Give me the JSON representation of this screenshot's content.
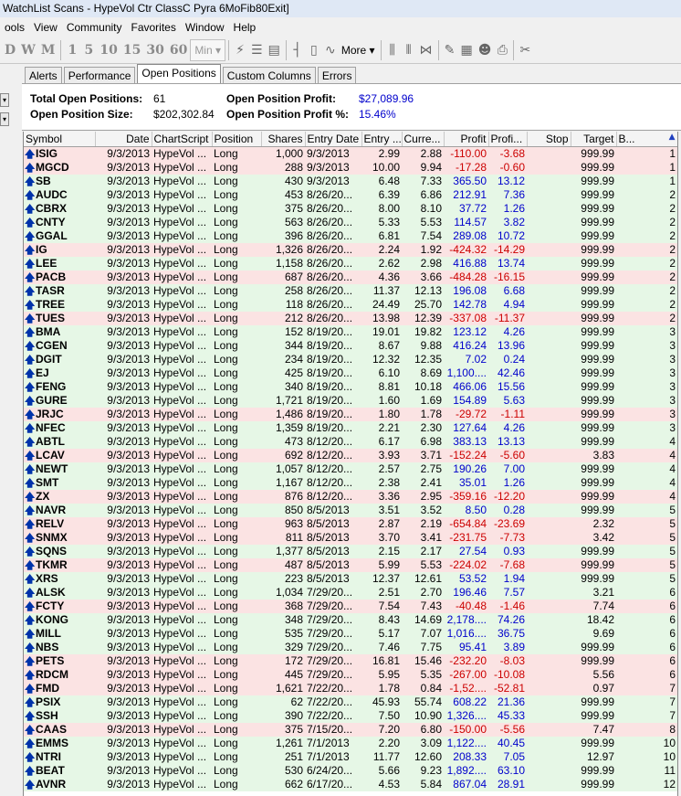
{
  "window": {
    "title": "WatchList Scans - HypeVol Ctr ClassC Pyra 6MoFib80Exit]"
  },
  "menu": [
    "ools",
    "View",
    "Community",
    "Favorites",
    "Window",
    "Help"
  ],
  "toolbar": {
    "buttons": [
      "D",
      "W",
      "M",
      "1",
      "5",
      "10",
      "15",
      "30",
      "60"
    ],
    "min_label": "Min",
    "more_label": "More"
  },
  "tabs": [
    "Alerts",
    "Performance",
    "Open Positions",
    "Custom Columns",
    "Errors"
  ],
  "summary": {
    "total_open_positions_label": "Total Open Positions:",
    "total_open_positions": "61",
    "open_position_size_label": "Open Position Size:",
    "open_position_size": "$202,302.84",
    "open_position_profit_label": "Open Position Profit:",
    "open_position_profit": "$27,089.96",
    "open_position_profit_pct_label": "Open Position Profit %:",
    "open_position_profit_pct": "15.46%"
  },
  "columns": [
    "Symbol",
    "Date",
    "ChartScript",
    "Position",
    "Shares",
    "Entry Date",
    "Entry ...",
    "Curre...",
    "Profit",
    "Profi...",
    "Stop",
    "Target",
    "B..."
  ],
  "rows": [
    [
      "ISIG",
      "9/3/2013",
      "HypeVol ...",
      "Long",
      "1,000",
      "9/3/2013",
      "2.99",
      "2.88",
      "-110.00",
      "-3.68",
      "",
      "999.99",
      "1"
    ],
    [
      "MGCD",
      "9/3/2013",
      "HypeVol ...",
      "Long",
      "288",
      "9/3/2013",
      "10.00",
      "9.94",
      "-17.28",
      "-0.60",
      "",
      "999.99",
      "1"
    ],
    [
      "SB",
      "9/3/2013",
      "HypeVol ...",
      "Long",
      "430",
      "9/3/2013",
      "6.48",
      "7.33",
      "365.50",
      "13.12",
      "",
      "999.99",
      "1"
    ],
    [
      "AUDC",
      "9/3/2013",
      "HypeVol ...",
      "Long",
      "453",
      "8/26/20...",
      "6.39",
      "6.86",
      "212.91",
      "7.36",
      "",
      "999.99",
      "2"
    ],
    [
      "CBRX",
      "9/3/2013",
      "HypeVol ...",
      "Long",
      "375",
      "8/26/20...",
      "8.00",
      "8.10",
      "37.72",
      "1.26",
      "",
      "999.99",
      "2"
    ],
    [
      "CNTY",
      "9/3/2013",
      "HypeVol ...",
      "Long",
      "563",
      "8/26/20...",
      "5.33",
      "5.53",
      "114.57",
      "3.82",
      "",
      "999.99",
      "2"
    ],
    [
      "GGAL",
      "9/3/2013",
      "HypeVol ...",
      "Long",
      "396",
      "8/26/20...",
      "6.81",
      "7.54",
      "289.08",
      "10.72",
      "",
      "999.99",
      "2"
    ],
    [
      "IG",
      "9/3/2013",
      "HypeVol ...",
      "Long",
      "1,326",
      "8/26/20...",
      "2.24",
      "1.92",
      "-424.32",
      "-14.29",
      "",
      "999.99",
      "2"
    ],
    [
      "LEE",
      "9/3/2013",
      "HypeVol ...",
      "Long",
      "1,158",
      "8/26/20...",
      "2.62",
      "2.98",
      "416.88",
      "13.74",
      "",
      "999.99",
      "2"
    ],
    [
      "PACB",
      "9/3/2013",
      "HypeVol ...",
      "Long",
      "687",
      "8/26/20...",
      "4.36",
      "3.66",
      "-484.28",
      "-16.15",
      "",
      "999.99",
      "2"
    ],
    [
      "TASR",
      "9/3/2013",
      "HypeVol ...",
      "Long",
      "258",
      "8/26/20...",
      "11.37",
      "12.13",
      "196.08",
      "6.68",
      "",
      "999.99",
      "2"
    ],
    [
      "TREE",
      "9/3/2013",
      "HypeVol ...",
      "Long",
      "118",
      "8/26/20...",
      "24.49",
      "25.70",
      "142.78",
      "4.94",
      "",
      "999.99",
      "2"
    ],
    [
      "TUES",
      "9/3/2013",
      "HypeVol ...",
      "Long",
      "212",
      "8/26/20...",
      "13.98",
      "12.39",
      "-337.08",
      "-11.37",
      "",
      "999.99",
      "2"
    ],
    [
      "BMA",
      "9/3/2013",
      "HypeVol ...",
      "Long",
      "152",
      "8/19/20...",
      "19.01",
      "19.82",
      "123.12",
      "4.26",
      "",
      "999.99",
      "3"
    ],
    [
      "CGEN",
      "9/3/2013",
      "HypeVol ...",
      "Long",
      "344",
      "8/19/20...",
      "8.67",
      "9.88",
      "416.24",
      "13.96",
      "",
      "999.99",
      "3"
    ],
    [
      "DGIT",
      "9/3/2013",
      "HypeVol ...",
      "Long",
      "234",
      "8/19/20...",
      "12.32",
      "12.35",
      "7.02",
      "0.24",
      "",
      "999.99",
      "3"
    ],
    [
      "EJ",
      "9/3/2013",
      "HypeVol ...",
      "Long",
      "425",
      "8/19/20...",
      "6.10",
      "8.69",
      "1,100....",
      "42.46",
      "",
      "999.99",
      "3"
    ],
    [
      "FENG",
      "9/3/2013",
      "HypeVol ...",
      "Long",
      "340",
      "8/19/20...",
      "8.81",
      "10.18",
      "466.06",
      "15.56",
      "",
      "999.99",
      "3"
    ],
    [
      "GURE",
      "9/3/2013",
      "HypeVol ...",
      "Long",
      "1,721",
      "8/19/20...",
      "1.60",
      "1.69",
      "154.89",
      "5.63",
      "",
      "999.99",
      "3"
    ],
    [
      "JRJC",
      "9/3/2013",
      "HypeVol ...",
      "Long",
      "1,486",
      "8/19/20...",
      "1.80",
      "1.78",
      "-29.72",
      "-1.11",
      "",
      "999.99",
      "3"
    ],
    [
      "NFEC",
      "9/3/2013",
      "HypeVol ...",
      "Long",
      "1,359",
      "8/19/20...",
      "2.21",
      "2.30",
      "127.64",
      "4.26",
      "",
      "999.99",
      "3"
    ],
    [
      "ABTL",
      "9/3/2013",
      "HypeVol ...",
      "Long",
      "473",
      "8/12/20...",
      "6.17",
      "6.98",
      "383.13",
      "13.13",
      "",
      "999.99",
      "4"
    ],
    [
      "LCAV",
      "9/3/2013",
      "HypeVol ...",
      "Long",
      "692",
      "8/12/20...",
      "3.93",
      "3.71",
      "-152.24",
      "-5.60",
      "",
      "3.83",
      "4"
    ],
    [
      "NEWT",
      "9/3/2013",
      "HypeVol ...",
      "Long",
      "1,057",
      "8/12/20...",
      "2.57",
      "2.75",
      "190.26",
      "7.00",
      "",
      "999.99",
      "4"
    ],
    [
      "SMT",
      "9/3/2013",
      "HypeVol ...",
      "Long",
      "1,167",
      "8/12/20...",
      "2.38",
      "2.41",
      "35.01",
      "1.26",
      "",
      "999.99",
      "4"
    ],
    [
      "ZX",
      "9/3/2013",
      "HypeVol ...",
      "Long",
      "876",
      "8/12/20...",
      "3.36",
      "2.95",
      "-359.16",
      "-12.20",
      "",
      "999.99",
      "4"
    ],
    [
      "NAVR",
      "9/3/2013",
      "HypeVol ...",
      "Long",
      "850",
      "8/5/2013",
      "3.51",
      "3.52",
      "8.50",
      "0.28",
      "",
      "999.99",
      "5"
    ],
    [
      "RELV",
      "9/3/2013",
      "HypeVol ...",
      "Long",
      "963",
      "8/5/2013",
      "2.87",
      "2.19",
      "-654.84",
      "-23.69",
      "",
      "2.32",
      "5"
    ],
    [
      "SNMX",
      "9/3/2013",
      "HypeVol ...",
      "Long",
      "811",
      "8/5/2013",
      "3.70",
      "3.41",
      "-231.75",
      "-7.73",
      "",
      "3.42",
      "5"
    ],
    [
      "SQNS",
      "9/3/2013",
      "HypeVol ...",
      "Long",
      "1,377",
      "8/5/2013",
      "2.15",
      "2.17",
      "27.54",
      "0.93",
      "",
      "999.99",
      "5"
    ],
    [
      "TKMR",
      "9/3/2013",
      "HypeVol ...",
      "Long",
      "487",
      "8/5/2013",
      "5.99",
      "5.53",
      "-224.02",
      "-7.68",
      "",
      "999.99",
      "5"
    ],
    [
      "XRS",
      "9/3/2013",
      "HypeVol ...",
      "Long",
      "223",
      "8/5/2013",
      "12.37",
      "12.61",
      "53.52",
      "1.94",
      "",
      "999.99",
      "5"
    ],
    [
      "ALSK",
      "9/3/2013",
      "HypeVol ...",
      "Long",
      "1,034",
      "7/29/20...",
      "2.51",
      "2.70",
      "196.46",
      "7.57",
      "",
      "3.21",
      "6"
    ],
    [
      "FCTY",
      "9/3/2013",
      "HypeVol ...",
      "Long",
      "368",
      "7/29/20...",
      "7.54",
      "7.43",
      "-40.48",
      "-1.46",
      "",
      "7.74",
      "6"
    ],
    [
      "KONG",
      "9/3/2013",
      "HypeVol ...",
      "Long",
      "348",
      "7/29/20...",
      "8.43",
      "14.69",
      "2,178....",
      "74.26",
      "",
      "18.42",
      "6"
    ],
    [
      "MILL",
      "9/3/2013",
      "HypeVol ...",
      "Long",
      "535",
      "7/29/20...",
      "5.17",
      "7.07",
      "1,016....",
      "36.75",
      "",
      "9.69",
      "6"
    ],
    [
      "NBS",
      "9/3/2013",
      "HypeVol ...",
      "Long",
      "329",
      "7/29/20...",
      "7.46",
      "7.75",
      "95.41",
      "3.89",
      "",
      "999.99",
      "6"
    ],
    [
      "PETS",
      "9/3/2013",
      "HypeVol ...",
      "Long",
      "172",
      "7/29/20...",
      "16.81",
      "15.46",
      "-232.20",
      "-8.03",
      "",
      "999.99",
      "6"
    ],
    [
      "RDCM",
      "9/3/2013",
      "HypeVol ...",
      "Long",
      "445",
      "7/29/20...",
      "5.95",
      "5.35",
      "-267.00",
      "-10.08",
      "",
      "5.56",
      "6"
    ],
    [
      "FMD",
      "9/3/2013",
      "HypeVol ...",
      "Long",
      "1,621",
      "7/22/20...",
      "1.78",
      "0.84",
      "-1,52....",
      "-52.81",
      "",
      "0.97",
      "7"
    ],
    [
      "PSIX",
      "9/3/2013",
      "HypeVol ...",
      "Long",
      "62",
      "7/22/20...",
      "45.93",
      "55.74",
      "608.22",
      "21.36",
      "",
      "999.99",
      "7"
    ],
    [
      "SSH",
      "9/3/2013",
      "HypeVol ...",
      "Long",
      "390",
      "7/22/20...",
      "7.50",
      "10.90",
      "1,326....",
      "45.33",
      "",
      "999.99",
      "7"
    ],
    [
      "CAAS",
      "9/3/2013",
      "HypeVol ...",
      "Long",
      "375",
      "7/15/20...",
      "7.20",
      "6.80",
      "-150.00",
      "-5.56",
      "",
      "7.47",
      "8"
    ],
    [
      "EMMS",
      "9/3/2013",
      "HypeVol ...",
      "Long",
      "1,261",
      "7/1/2013",
      "2.20",
      "3.09",
      "1,122....",
      "40.45",
      "",
      "999.99",
      "10"
    ],
    [
      "NTRI",
      "9/3/2013",
      "HypeVol ...",
      "Long",
      "251",
      "7/1/2013",
      "11.77",
      "12.60",
      "208.33",
      "7.05",
      "",
      "12.97",
      "10"
    ],
    [
      "BEAT",
      "9/3/2013",
      "HypeVol ...",
      "Long",
      "530",
      "6/24/20...",
      "5.66",
      "9.23",
      "1,892....",
      "63.10",
      "",
      "999.99",
      "11"
    ],
    [
      "AVNR",
      "9/3/2013",
      "HypeVol ...",
      "Long",
      "662",
      "6/17/20...",
      "4.53",
      "5.84",
      "867.04",
      "28.91",
      "",
      "999.99",
      "12"
    ]
  ]
}
